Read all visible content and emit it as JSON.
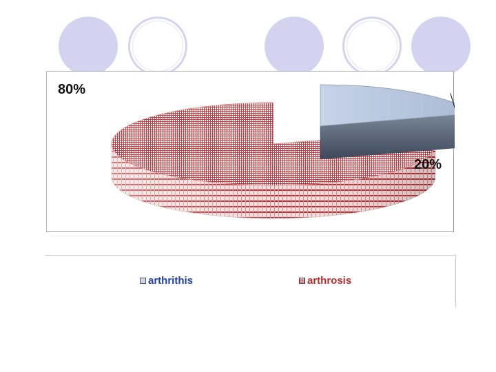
{
  "slide": {
    "decor_circles": [
      "filled",
      "ring",
      "filled",
      "ring",
      "filled"
    ],
    "decor_color": "#d3d3f0"
  },
  "chart_data": {
    "type": "pie",
    "style": "3d",
    "title": "",
    "slices": [
      {
        "label": "arthrithis",
        "value": 20,
        "data_label": "20%",
        "color": "#c9d5e8",
        "pattern": "solid",
        "exploded": true
      },
      {
        "label": "arthrosis",
        "value": 80,
        "data_label": "80%",
        "color": "#c0282c",
        "pattern": "grid"
      }
    ],
    "legend": {
      "placement": "bottom",
      "entries": [
        {
          "label": "arthrithis",
          "color": "#1f3fa8"
        },
        {
          "label": "arthrosis",
          "color": "#c0282c"
        }
      ]
    }
  }
}
